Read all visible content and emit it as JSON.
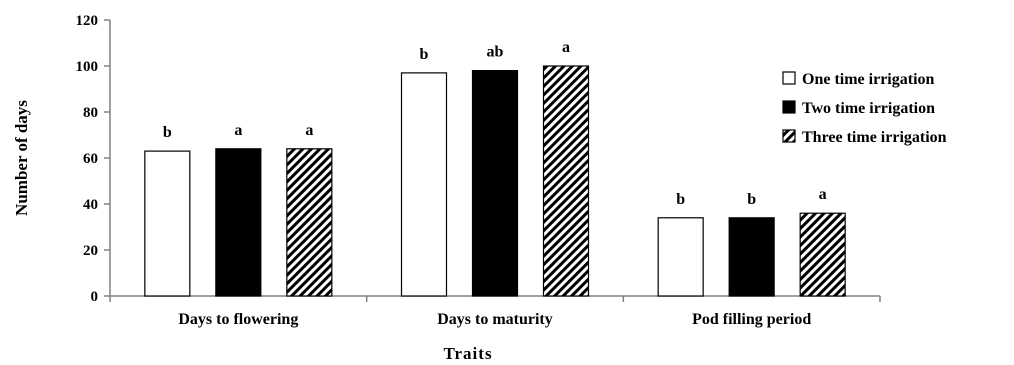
{
  "chart_data": {
    "type": "bar",
    "categories": [
      "Days to flowering",
      "Days to maturity",
      "Pod filling period"
    ],
    "series": [
      {
        "name": "One time irrigation",
        "values": [
          63,
          97,
          34
        ],
        "letters": [
          "b",
          "b",
          "b"
        ],
        "fill": "#ffffff",
        "pattern": "none"
      },
      {
        "name": "Two time irrigation",
        "values": [
          64,
          98,
          34
        ],
        "letters": [
          "a",
          "ab",
          "b"
        ],
        "fill": "#000000",
        "pattern": "none"
      },
      {
        "name": "Three time irrigation",
        "values": [
          64,
          100,
          36
        ],
        "letters": [
          "a",
          "a",
          "a"
        ],
        "fill": "#ffffff",
        "pattern": "diagonal-hatch"
      }
    ],
    "ylim": [
      0,
      120
    ],
    "yticks": [
      0,
      20,
      40,
      60,
      80,
      100,
      120
    ],
    "xlabel": "Traits",
    "ylabel": "Number of days",
    "grid": false,
    "legend_position": "right",
    "axis_color": "#808080"
  }
}
